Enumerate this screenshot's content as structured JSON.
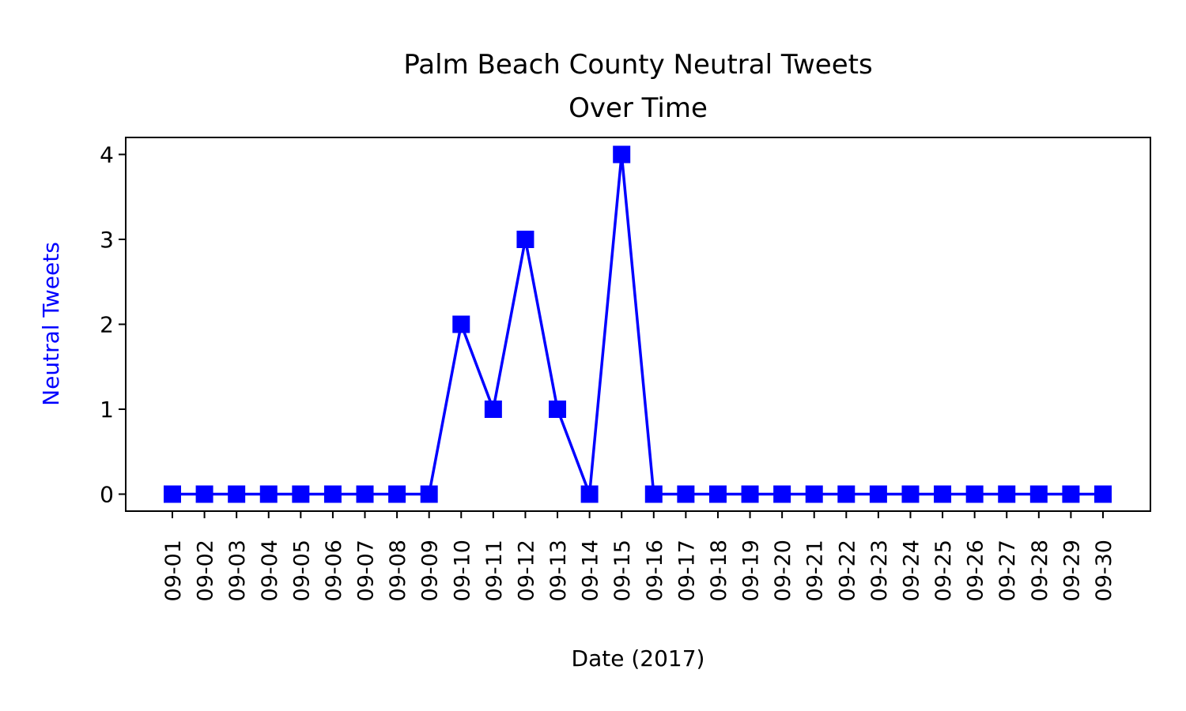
{
  "chart_data": {
    "type": "line",
    "title_line1": "Palm Beach County Neutral Tweets",
    "title_line2": "Over Time",
    "xlabel": "Date (2017)",
    "ylabel": "Neutral Tweets",
    "categories": [
      "09-01",
      "09-02",
      "09-03",
      "09-04",
      "09-05",
      "09-06",
      "09-07",
      "09-08",
      "09-09",
      "09-10",
      "09-11",
      "09-12",
      "09-13",
      "09-14",
      "09-15",
      "09-16",
      "09-17",
      "09-18",
      "09-19",
      "09-20",
      "09-21",
      "09-22",
      "09-23",
      "09-24",
      "09-25",
      "09-26",
      "09-27",
      "09-28",
      "09-29",
      "09-30"
    ],
    "series": [
      {
        "values": [
          0,
          0,
          0,
          0,
          0,
          0,
          0,
          0,
          0,
          2,
          1,
          3,
          1,
          0,
          4,
          0,
          0,
          0,
          0,
          0,
          0,
          0,
          0,
          0,
          0,
          0,
          0,
          0,
          0,
          0
        ]
      }
    ],
    "ylim": [
      -0.2,
      4.2
    ],
    "yticks": [
      "0",
      "1",
      "2",
      "3",
      "4"
    ],
    "line_color": "#0000ff",
    "ylabel_color": "#0000ff",
    "marker": "square",
    "grid": false
  }
}
